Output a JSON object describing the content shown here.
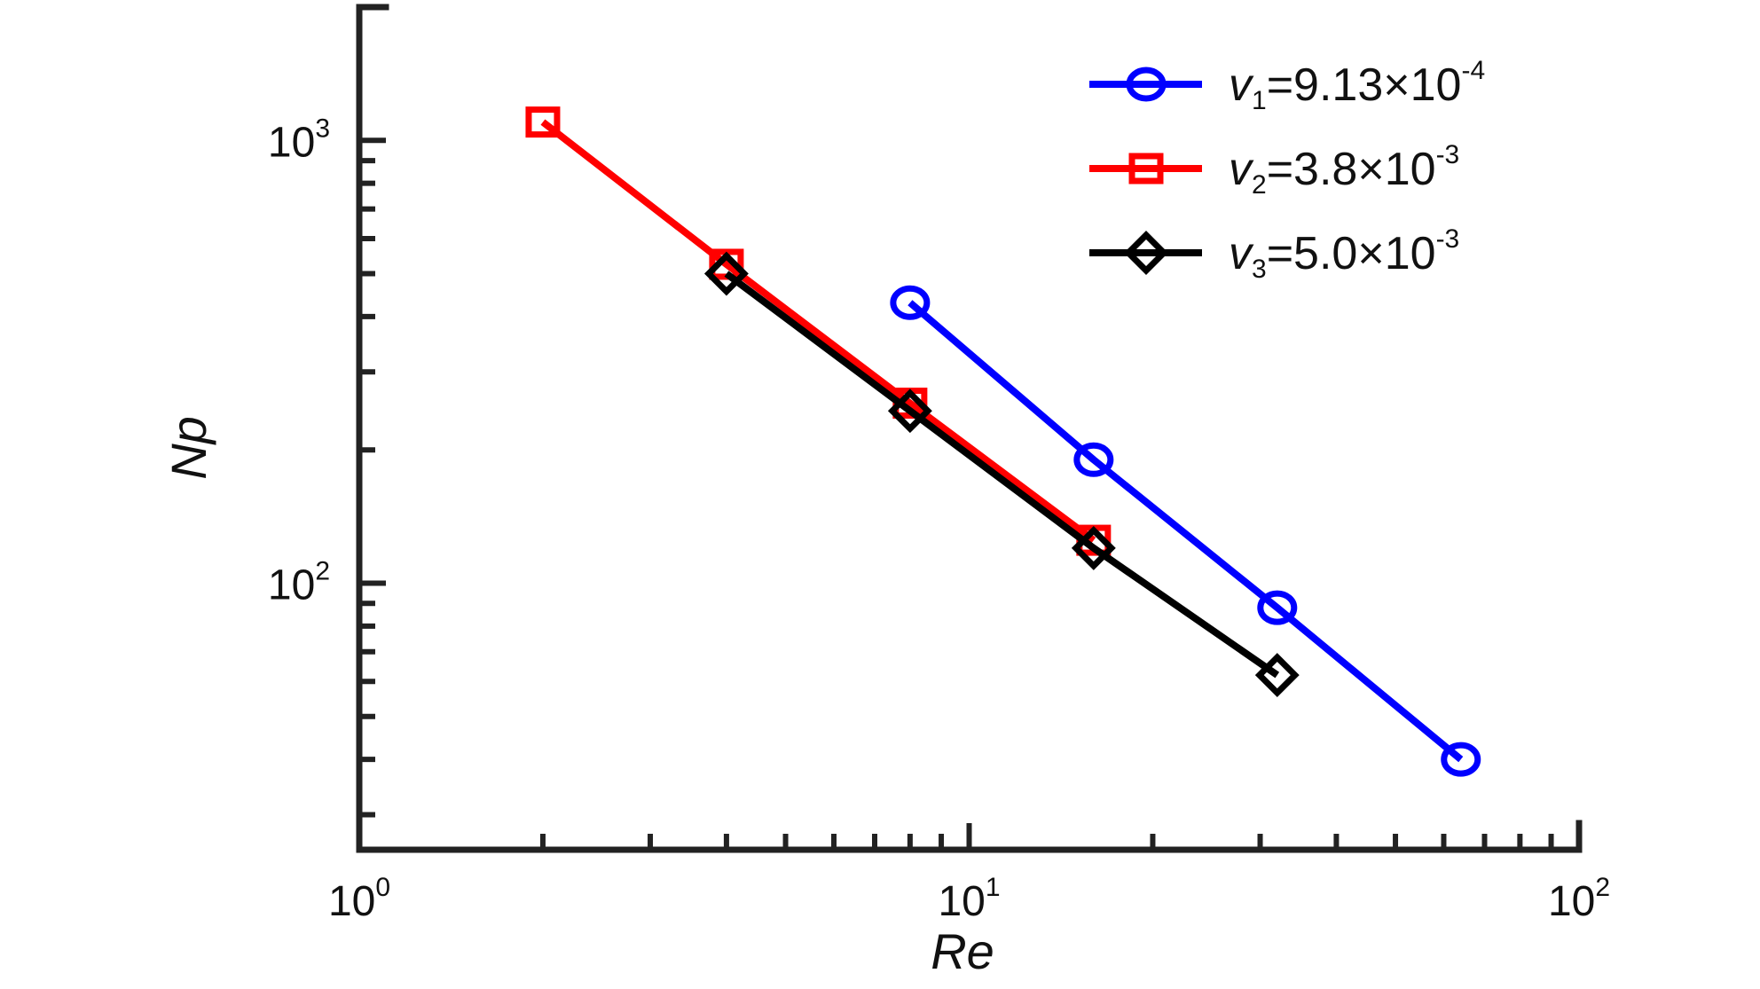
{
  "chart_data": {
    "type": "line",
    "xlabel": "Re",
    "ylabel": "Np",
    "x_scale": "log",
    "y_scale": "log",
    "xlim": [
      1,
      100
    ],
    "ylim": [
      25,
      2000
    ],
    "x_ticks": [
      {
        "value": 1,
        "base": "10",
        "exp": "0"
      },
      {
        "value": 10,
        "base": "10",
        "exp": "1"
      },
      {
        "value": 100,
        "base": "10",
        "exp": "2"
      }
    ],
    "y_ticks": [
      {
        "value": 100,
        "base": "10",
        "exp": "2"
      },
      {
        "value": 1000,
        "base": "10",
        "exp": "3"
      }
    ],
    "grid": false,
    "legend_position": "top-right",
    "series": [
      {
        "id": "v1",
        "legend": {
          "symbol": "v",
          "sub": "1",
          "mid": "=9.13×10",
          "sup": "-4"
        },
        "color": "#0000ff",
        "marker": "circle",
        "x": [
          8,
          16,
          32,
          64
        ],
        "y": [
          430,
          190,
          88,
          40
        ]
      },
      {
        "id": "v2",
        "legend": {
          "symbol": "v",
          "sub": "2",
          "mid": "=3.8×10",
          "sup": "-3"
        },
        "color": "#ff0000",
        "marker": "square",
        "x": [
          2,
          4,
          8,
          16
        ],
        "y": [
          1100,
          525,
          255,
          125
        ]
      },
      {
        "id": "v3",
        "legend": {
          "symbol": "v",
          "sub": "3",
          "mid": "=5.0×10",
          "sup": "-3"
        },
        "color": "#000000",
        "marker": "diamond",
        "x": [
          4,
          8,
          16,
          32
        ],
        "y": [
          500,
          245,
          120,
          62
        ]
      }
    ]
  }
}
